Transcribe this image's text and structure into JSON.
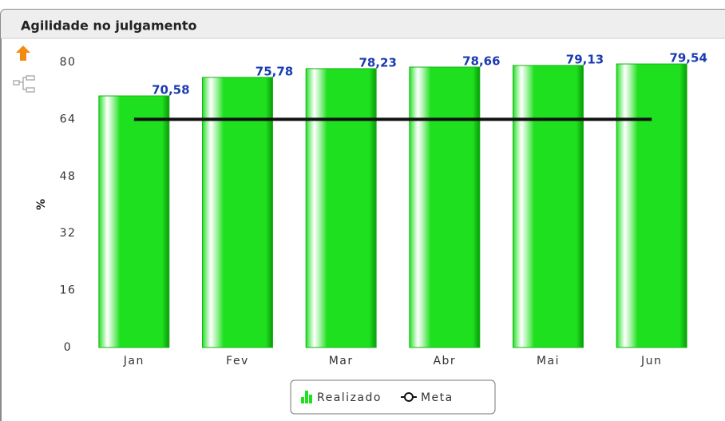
{
  "chart_data": {
    "type": "bar",
    "title": "Agilidade no julgamento",
    "ylabel": "%",
    "categories": [
      "Jan",
      "Fev",
      "Mar",
      "Abr",
      "Mai",
      "Jun"
    ],
    "series": [
      {
        "name": "Realizado",
        "type": "bar",
        "color": "#1fe01f",
        "values": [
          70.58,
          75.78,
          78.23,
          78.66,
          79.13,
          79.54
        ],
        "value_labels": [
          "70,58",
          "75,78",
          "78,23",
          "78,66",
          "79,13",
          "79,54"
        ],
        "label_color": "#1a3cb0"
      },
      {
        "name": "Meta",
        "type": "line",
        "color": "#111111",
        "values": [
          64,
          64,
          64,
          64,
          64,
          64
        ]
      }
    ],
    "ylim": [
      0,
      80
    ],
    "yticks": [
      0,
      16,
      32,
      48,
      64,
      80
    ],
    "grid": false
  }
}
